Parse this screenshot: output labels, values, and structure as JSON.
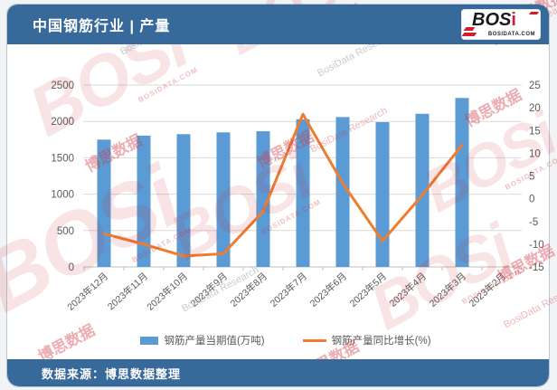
{
  "header": {
    "title": "中国钢筋行业 | 产量",
    "logo": {
      "text_main": "BOS",
      "text_accent": "i",
      "domain": "BOSIDATA.COM"
    }
  },
  "footer": {
    "source": "数据来源：博思数据整理"
  },
  "watermark": {
    "brand": "BOSi",
    "brand_cn": "博思数据",
    "research": "BosiData Research",
    "domain": "BOSIDATA.COM"
  },
  "colors": {
    "header_bg": "#38699b",
    "bar": "#5B9BD5",
    "line": "#ED7D31",
    "grid": "#D9D9D9",
    "axis_text": "#595959"
  },
  "chart_data": {
    "type": "bar",
    "subtype": "combo-bar-line",
    "categories": [
      "2023年12月",
      "2023年11月",
      "2023年10月",
      "2023年9月",
      "2023年8月",
      "2023年7月",
      "2023年6月",
      "2023年5月",
      "2023年4月",
      "2023年3月",
      "2023年2月"
    ],
    "series": [
      {
        "name": "钢筋产量当期值(万吨)",
        "type": "bar",
        "axis": "left",
        "color": "#5B9BD5",
        "values": [
          1750,
          1805,
          1825,
          1850,
          1865,
          2030,
          2060,
          1990,
          2105,
          2322,
          null
        ]
      },
      {
        "name": "钢筋产量同比增长(%)",
        "type": "line",
        "axis": "right",
        "color": "#ED7D31",
        "values": [
          -7.7,
          -10.0,
          -12.6,
          -12.1,
          -2.8,
          18.6,
          3.4,
          -9.3,
          0.8,
          11.8,
          null
        ]
      }
    ],
    "left_axis": {
      "min": 0,
      "max": 2500,
      "step": 500,
      "ticks": [
        0,
        500,
        1000,
        1500,
        2000,
        2500
      ]
    },
    "right_axis": {
      "min": -15,
      "max": 25,
      "step": 5,
      "ticks": [
        -15,
        -10,
        -5,
        0,
        5,
        10,
        15,
        20,
        25
      ]
    },
    "grid": "horizontal",
    "legend_position": "bottom",
    "title": "中国钢筋行业 | 产量",
    "xlabel": "",
    "ylabel_left": "万吨",
    "ylabel_right": "%"
  }
}
